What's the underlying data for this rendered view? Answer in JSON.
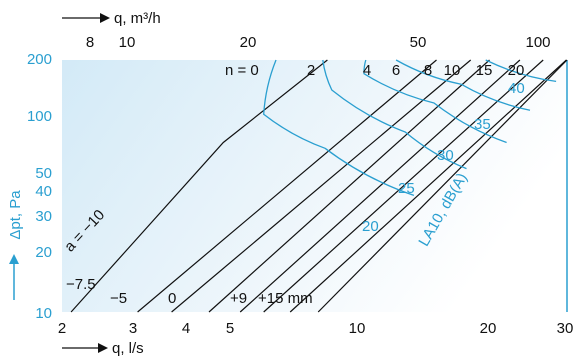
{
  "chart_data": {
    "type": "line",
    "x_axis": {
      "label": "q, l/s",
      "scale": "log",
      "range": [
        2,
        30
      ],
      "ticks": [
        "2",
        "3",
        "4",
        "5",
        "10",
        "20",
        "30"
      ]
    },
    "x_axis_top": {
      "label": "q, m³/h",
      "scale": "log",
      "ticks": [
        "8",
        "10",
        "20",
        "50",
        "100"
      ]
    },
    "y_axis": {
      "label": "Δpt, Pa",
      "scale": "log",
      "range": [
        10,
        200
      ],
      "ticks": [
        "10",
        "20",
        "30",
        "40",
        "50",
        "100",
        "200"
      ]
    },
    "black_lines": [
      {
        "label": "n = 0",
        "points": [
          [
            2.1,
            10
          ],
          [
            4.75,
            75
          ],
          [
            8.3,
            200
          ]
        ]
      },
      {
        "label": "2",
        "points": [
          [
            3.0,
            10
          ],
          [
            14.9,
            200
          ]
        ]
      },
      {
        "label": "4",
        "points": [
          [
            3.6,
            10
          ],
          [
            17.9,
            200
          ]
        ]
      },
      {
        "label": "6",
        "points": [
          [
            4.4,
            10
          ],
          [
            19.8,
            200
          ]
        ]
      },
      {
        "label": "8",
        "points": [
          [
            5.2,
            10
          ],
          [
            23.3,
            200
          ]
        ]
      },
      {
        "label": "10",
        "points": [
          [
            5.9,
            10
          ],
          [
            26.4,
            200
          ]
        ]
      },
      {
        "label": "15",
        "points": [
          [
            6.8,
            10
          ],
          [
            29.9,
            200
          ]
        ]
      },
      {
        "label": "20",
        "points": [
          [
            7.9,
            10
          ],
          [
            35.3,
            200
          ]
        ]
      }
    ],
    "series_labels_bottom": [
      "−10",
      "−7.5",
      "−5",
      "0",
      "+9",
      "+15 mm"
    ],
    "series_labels_prefix": "a = ",
    "blue_curves": [
      {
        "label": "20",
        "points": [
          [
            6.3,
            200
          ],
          [
            5.9,
            105
          ],
          [
            8.2,
            70
          ],
          [
            13.2,
            40
          ]
        ]
      },
      {
        "label": "25",
        "points": [
          [
            8.1,
            200
          ],
          [
            8.5,
            140
          ],
          [
            12.6,
            85
          ],
          [
            17.5,
            55
          ]
        ]
      },
      {
        "label": "30",
        "points": [
          [
            10.2,
            200
          ],
          [
            10.1,
            170
          ],
          [
            14.7,
            120
          ],
          [
            21.7,
            75
          ]
        ]
      },
      {
        "label": "35",
        "points": [
          [
            12.0,
            200
          ],
          [
            17.0,
            150
          ],
          [
            24.6,
            110
          ]
        ]
      },
      {
        "label": "40",
        "points": [
          [
            19.4,
            200
          ],
          [
            28.3,
            155
          ]
        ]
      }
    ],
    "blue_axis_label": "LA10, dB(A)",
    "blue_values": [
      "20",
      "25",
      "30",
      "35",
      "40"
    ],
    "colors": {
      "lines": "#111111",
      "curves": "#2a9fd0",
      "background_from": "#d3eaf7",
      "background_to": "#ffffff"
    },
    "grid": false
  }
}
